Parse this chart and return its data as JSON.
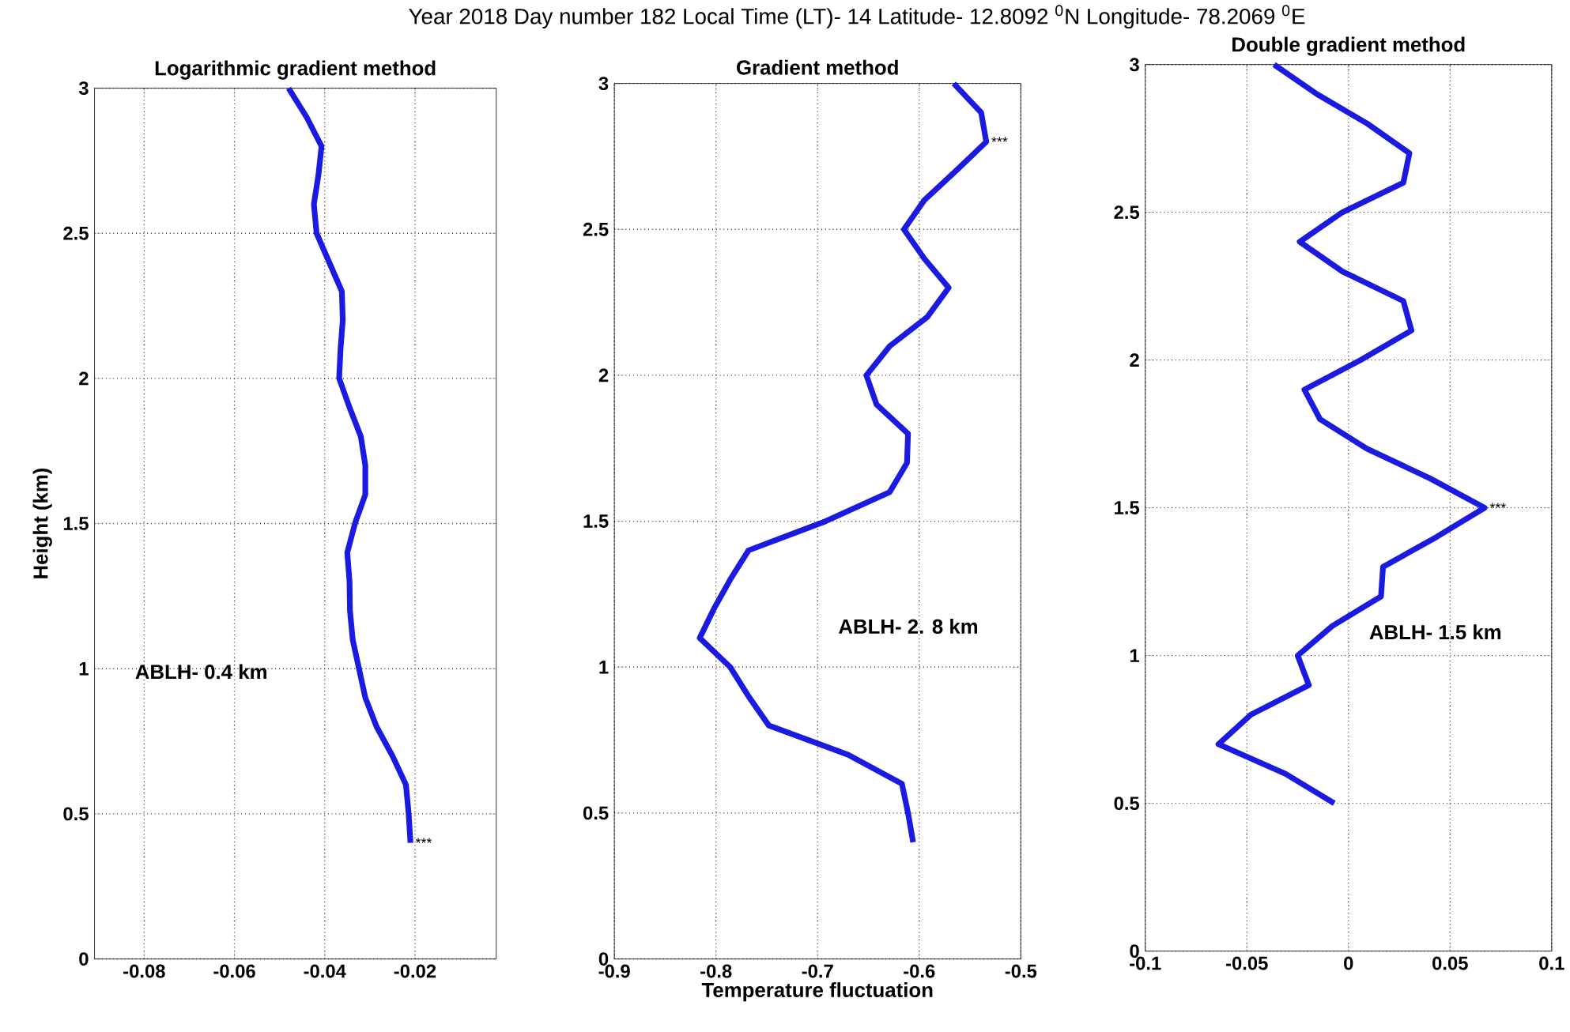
{
  "chart_data": [
    {
      "type": "line",
      "title": "Logarithmic gradient method",
      "ylabel": "Height (km)",
      "xlim": [
        -0.091,
        -0.002
      ],
      "ylim": [
        0,
        3
      ],
      "xticks": [
        -0.08,
        -0.06,
        -0.04,
        -0.02
      ],
      "yticks": [
        0,
        0.5,
        1,
        1.5,
        2,
        2.5,
        3
      ],
      "grid": true,
      "annotations": [
        "ABLH- 0.4 km",
        {
          "text": "***",
          "x": -0.021,
          "y": 0.4
        }
      ],
      "series": [
        {
          "color": "#1a1ae0",
          "x": [
            -0.048,
            -0.044,
            -0.0407,
            -0.0414,
            -0.0424,
            -0.0418,
            -0.039,
            -0.0362,
            -0.036,
            -0.0365,
            -0.0368,
            -0.0345,
            -0.032,
            -0.031,
            -0.031,
            -0.0333,
            -0.035,
            -0.0345,
            -0.0344,
            -0.0338,
            -0.0324,
            -0.031,
            -0.0285,
            -0.025,
            -0.022,
            -0.0214,
            -0.021
          ],
          "values": [
            3.0,
            2.9,
            2.8,
            2.7,
            2.6,
            2.5,
            2.4,
            2.3,
            2.2,
            2.1,
            2.0,
            1.9,
            1.8,
            1.7,
            1.6,
            1.5,
            1.4,
            1.3,
            1.2,
            1.1,
            1.0,
            0.9,
            0.8,
            0.7,
            0.6,
            0.5,
            0.4
          ]
        }
      ]
    },
    {
      "type": "line",
      "title": "Gradient method",
      "subtitle": "Year 2018      Day number 182          Local Time (LT)- 14          Latitude- 12.8092 $^{0}$N      Longitude- 78.2069 $^{0}$E",
      "xlabel": "Temperature fluctuation",
      "xlim": [
        -0.9,
        -0.5
      ],
      "ylim": [
        0,
        3
      ],
      "xticks": [
        -0.9,
        -0.8,
        -0.7,
        -0.6,
        -0.5
      ],
      "yticks": [
        0,
        0.5,
        1,
        1.5,
        2,
        2.5,
        3
      ],
      "grid": true,
      "annotations": [
        "ABLH- 2. 8 km",
        {
          "text": "***",
          "x": -0.534,
          "y": 2.8
        }
      ],
      "series": [
        {
          "color": "#1a1ae0",
          "x": [
            -0.566,
            -0.539,
            -0.534,
            -0.564,
            -0.595,
            -0.615,
            -0.595,
            -0.571,
            -0.592,
            -0.629,
            -0.652,
            -0.642,
            -0.611,
            -0.612,
            -0.629,
            -0.692,
            -0.768,
            -0.786,
            -0.802,
            -0.816,
            -0.786,
            -0.768,
            -0.748,
            -0.67,
            -0.617,
            -0.611,
            -0.606
          ],
          "values": [
            3.0,
            2.9,
            2.8,
            2.7,
            2.6,
            2.5,
            2.4,
            2.3,
            2.2,
            2.1,
            2.0,
            1.9,
            1.8,
            1.7,
            1.6,
            1.5,
            1.4,
            1.3,
            1.2,
            1.1,
            1.0,
            0.9,
            0.8,
            0.7,
            0.6,
            0.5,
            0.4
          ]
        }
      ]
    },
    {
      "type": "line",
      "title": "Double gradient method",
      "xlim": [
        -0.1,
        0.1
      ],
      "ylim": [
        0,
        3
      ],
      "xticks": [
        -0.1,
        -0.05,
        0,
        0.05,
        0.1
      ],
      "yticks": [
        0,
        0.5,
        1,
        1.5,
        2,
        2.5,
        3
      ],
      "grid": true,
      "annotations": [
        "ABLH- 1.5 km",
        {
          "text": "***",
          "x": 0.067,
          "y": 1.5
        }
      ],
      "series": [
        {
          "color": "#1a1ae0",
          "x": [
            -0.0366,
            -0.0155,
            0.0093,
            0.03,
            0.027,
            -0.003,
            -0.024,
            -0.003,
            0.027,
            0.031,
            0.006,
            -0.0217,
            -0.014,
            0.009,
            0.04,
            0.067,
            0.043,
            0.017,
            0.016,
            -0.008,
            -0.025,
            -0.0195,
            -0.048,
            -0.064,
            -0.031,
            -0.007
          ],
          "values": [
            3.0,
            2.9,
            2.8,
            2.7,
            2.6,
            2.5,
            2.4,
            2.3,
            2.2,
            2.1,
            2.0,
            1.9,
            1.8,
            1.7,
            1.6,
            1.5,
            1.4,
            1.3,
            1.2,
            1.1,
            1.0,
            0.9,
            0.8,
            0.7,
            0.6,
            0.5
          ]
        }
      ]
    }
  ]
}
